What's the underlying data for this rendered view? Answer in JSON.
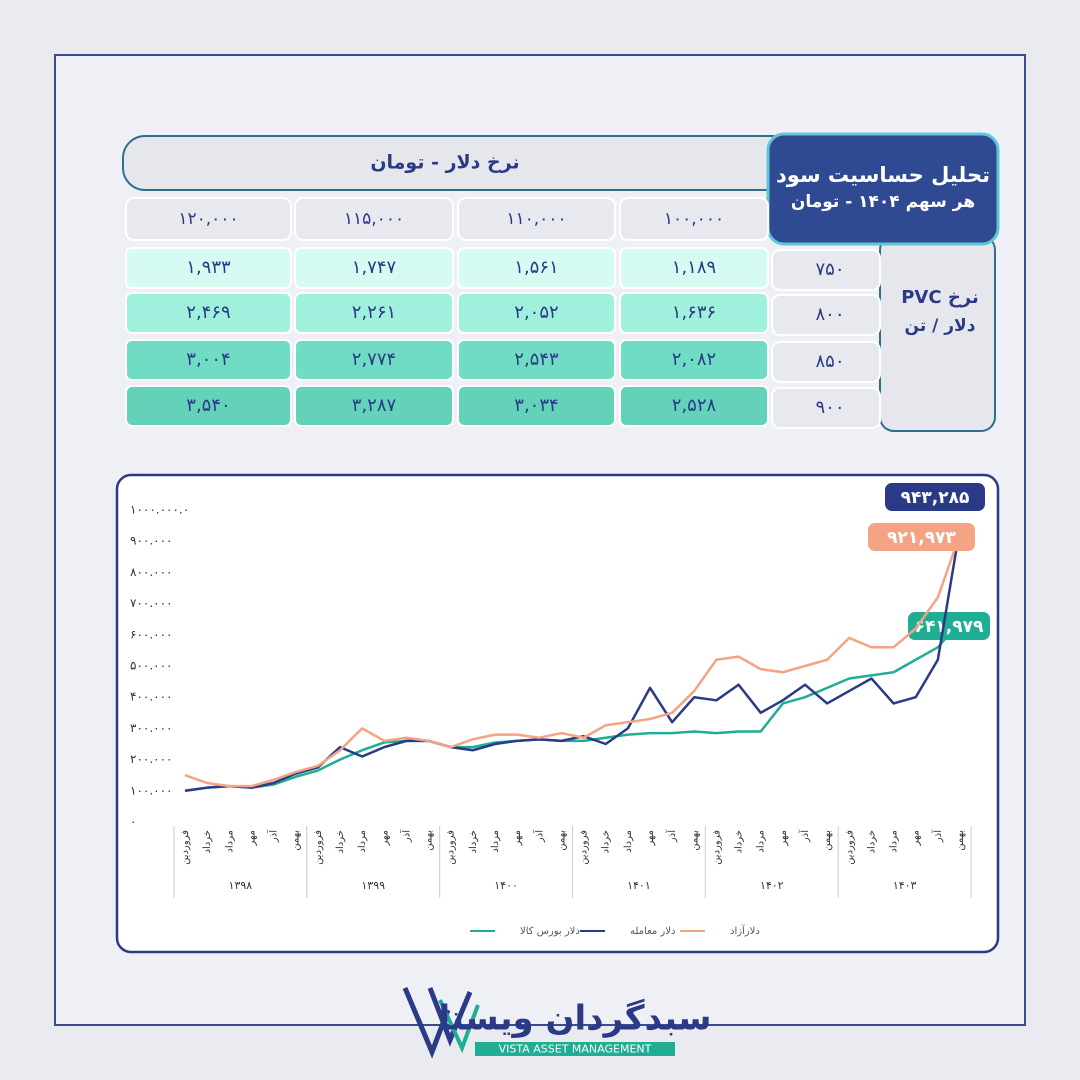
{
  "header": {
    "title": "تحلیل حساسیت سود",
    "subtitle": "هر سهم ۱۴۰۴ - تومان"
  },
  "table": {
    "column_group": "نرخ دلار - تومان",
    "row_group": "نرخ PVC",
    "row_unit": "دلار / تن",
    "columns": [
      "۱۰۰,۰۰۰",
      "۱۱۰,۰۰۰",
      "۱۱۵,۰۰۰",
      "۱۲۰,۰۰۰"
    ],
    "rows": [
      [
        "۷۵۰",
        "۱,۱۸۹",
        "۱,۵۶۱",
        "۱,۷۴۷",
        "۱,۹۳۳"
      ],
      [
        "۸۰۰",
        "۱,۶۳۶",
        "۲,۰۵۲",
        "۲,۲۶۱",
        "۲,۴۶۹"
      ],
      [
        "۸۵۰",
        "۲,۰۸۲",
        "۲,۵۴۳",
        "۲,۷۷۴",
        "۳,۰۰۴"
      ],
      [
        "۹۰۰",
        "۲,۵۲۸",
        "۳,۰۳۴",
        "۳,۲۸۷",
        "۳,۵۴۰"
      ]
    ]
  },
  "chart_data": {
    "type": "line",
    "categories": [
      "فروردین",
      "خرداد",
      "مرداد",
      "مهر",
      "آذر",
      "بهمن",
      "فروردین",
      "خرداد",
      "مرداد",
      "مهر",
      "آذر",
      "بهمن",
      "فروردین",
      "خرداد",
      "مرداد",
      "مهر",
      "آذر",
      "بهمن",
      "فروردین",
      "خرداد",
      "مرداد",
      "مهر",
      "آذر",
      "بهمن",
      "فروردین",
      "خرداد",
      "مرداد",
      "مهر",
      "آذر",
      "بهمن",
      "فروردین",
      "خرداد",
      "مرداد",
      "مهر",
      "آذر",
      "بهمن"
    ],
    "year_groups": [
      "۱۳۹۸",
      "۱۳۹۹",
      "۱۴۰۰",
      "۱۴۰۱",
      "۱۴۰۲",
      "۱۴۰۳"
    ],
    "ylim": [
      0,
      1000000
    ],
    "yticks": [
      {
        "value": 0,
        "label": "۰"
      },
      {
        "value": 100000,
        "label": "۱۰۰.۰۰۰"
      },
      {
        "value": 200000,
        "label": "۲۰۰.۰۰۰"
      },
      {
        "value": 300000,
        "label": "۳۰۰.۰۰۰"
      },
      {
        "value": 400000,
        "label": "۴۰۰.۰۰۰"
      },
      {
        "value": 500000,
        "label": "۵۰۰.۰۰۰"
      },
      {
        "value": 600000,
        "label": "۶۰۰.۰۰۰"
      },
      {
        "value": 700000,
        "label": "۷۰۰.۰۰۰"
      },
      {
        "value": 800000,
        "label": "۸۰۰.۰۰۰"
      },
      {
        "value": 900000,
        "label": "۹۰۰.۰۰۰"
      },
      {
        "value": 1000000,
        "label": "۱۰۰۰.۰۰۰.۰"
      }
    ],
    "series": [
      {
        "name": "دلار بورس کالا",
        "color": "#1fae94",
        "values": [
          100000,
          110000,
          115000,
          110000,
          120000,
          145000,
          165000,
          200000,
          230000,
          255000,
          260000,
          260000,
          240000,
          240000,
          255000,
          260000,
          265000,
          260000,
          260000,
          270000,
          280000,
          285000,
          285000,
          290000,
          285000,
          290000,
          290000,
          380000,
          400000,
          430000,
          460000,
          470000,
          480000,
          520000,
          560000,
          641979
        ],
        "value_labels": [
          null,
          null,
          null,
          null,
          null,
          null,
          null,
          null,
          null,
          null,
          null,
          null,
          null,
          null,
          null,
          null,
          null,
          null,
          null,
          null,
          null,
          null,
          null,
          null,
          null,
          null,
          null,
          null,
          null,
          null,
          null,
          null,
          null,
          null,
          null,
          "۶۴۱,۹۷۹"
        ]
      },
      {
        "name": "دلار معامله",
        "color": "#2b3a86",
        "values": [
          100000,
          110000,
          115000,
          110000,
          125000,
          155000,
          175000,
          240000,
          210000,
          240000,
          260000,
          260000,
          240000,
          230000,
          250000,
          260000,
          265000,
          260000,
          275000,
          250000,
          300000,
          430000,
          320000,
          400000,
          390000,
          440000,
          350000,
          390000,
          440000,
          380000,
          420000,
          460000,
          380000,
          400000,
          520000,
          943285
        ],
        "value_labels": [
          null,
          null,
          null,
          null,
          null,
          null,
          null,
          null,
          null,
          null,
          null,
          null,
          null,
          null,
          null,
          null,
          null,
          null,
          null,
          null,
          null,
          null,
          null,
          null,
          null,
          null,
          null,
          null,
          null,
          null,
          null,
          null,
          null,
          null,
          null,
          "۹۴۳,۲۸۵"
        ]
      },
      {
        "name": "دلارآزاد",
        "color": "#f4a384",
        "values": [
          150000,
          125000,
          115000,
          115000,
          135000,
          160000,
          180000,
          230000,
          300000,
          260000,
          270000,
          260000,
          240000,
          265000,
          280000,
          280000,
          270000,
          285000,
          270000,
          310000,
          320000,
          330000,
          350000,
          420000,
          520000,
          530000,
          490000,
          480000,
          500000,
          520000,
          590000,
          560000,
          560000,
          620000,
          720000,
          921973
        ],
        "value_labels": [
          null,
          null,
          null,
          null,
          null,
          null,
          null,
          null,
          null,
          null,
          null,
          null,
          null,
          null,
          null,
          null,
          null,
          null,
          null,
          null,
          null,
          null,
          null,
          null,
          null,
          null,
          null,
          null,
          null,
          null,
          null,
          null,
          null,
          null,
          null,
          "۹۲۱,۹۷۳"
        ]
      }
    ]
  },
  "logo": {
    "name": "سبدگردان ویستا",
    "tagline": "VISTA ASSET MANAGEMENT"
  }
}
